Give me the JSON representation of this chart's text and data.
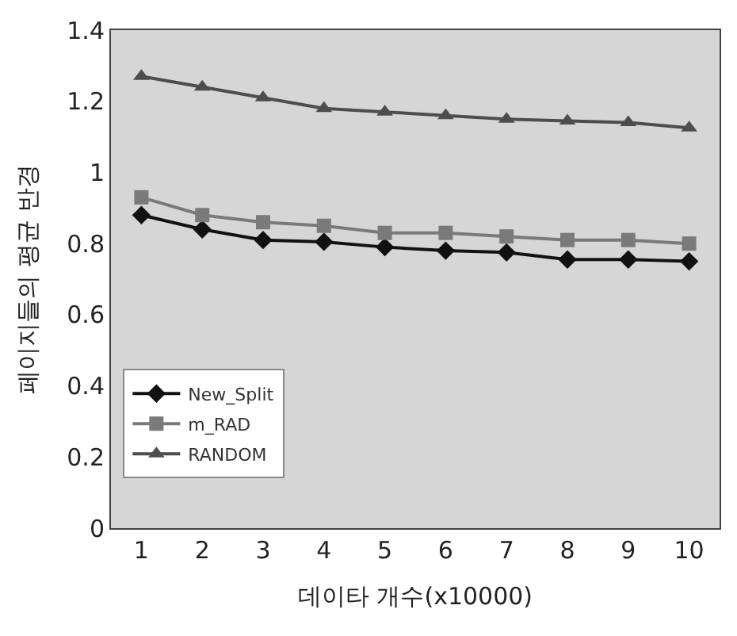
{
  "chart_data": {
    "type": "line",
    "xlabel": "데이타 개수(x10000)",
    "ylabel": "페이지들의 평균 반경",
    "categories": [
      "1",
      "2",
      "3",
      "4",
      "5",
      "6",
      "7",
      "8",
      "9",
      "10"
    ],
    "series": [
      {
        "name": "New_Split",
        "color": "#111111",
        "marker": "diamond",
        "values": [
          0.88,
          0.84,
          0.81,
          0.805,
          0.79,
          0.78,
          0.775,
          0.755,
          0.755,
          0.75
        ]
      },
      {
        "name": "m_RAD",
        "color": "#7a7a7a",
        "marker": "square",
        "values": [
          0.93,
          0.88,
          0.86,
          0.85,
          0.83,
          0.83,
          0.82,
          0.81,
          0.81,
          0.8
        ]
      },
      {
        "name": "RANDOM",
        "color": "#4d4d4d",
        "marker": "triangle",
        "values": [
          1.27,
          1.24,
          1.21,
          1.18,
          1.17,
          1.16,
          1.15,
          1.145,
          1.14,
          1.125
        ]
      }
    ],
    "ylim": [
      0,
      1.4
    ],
    "yticks": [
      0,
      {
        "value": 0.2,
        "label": "0.2"
      },
      {
        "value": 0.4,
        "label": "0.4"
      },
      {
        "value": 0.6,
        "label": "0.6"
      },
      {
        "value": 0.8,
        "label": "0.8"
      },
      1,
      {
        "value": 1.2,
        "label": "1.2"
      },
      {
        "value": 1.4,
        "label": "1.4"
      }
    ],
    "grid": false,
    "legend": "bottom left"
  }
}
